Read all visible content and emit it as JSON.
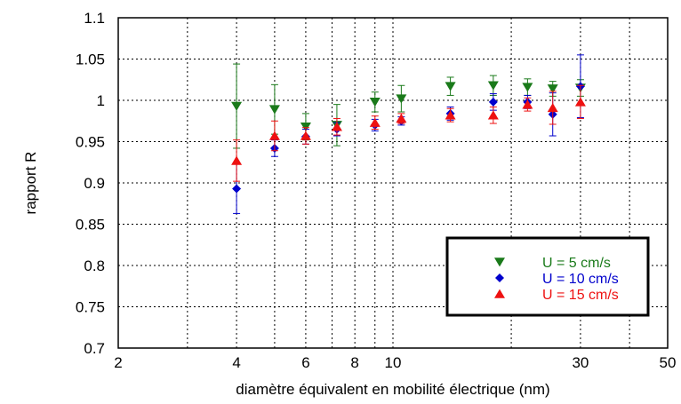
{
  "chart_data": {
    "type": "scatter",
    "xlabel": "diamètre équivalent en mobilité électrique (nm)",
    "ylabel": "rapport R",
    "x_scale": "log",
    "xlim": [
      2,
      50
    ],
    "ylim": [
      0.7,
      1.1
    ],
    "x_ticks": [
      2,
      4,
      6,
      8,
      10,
      30,
      50
    ],
    "x_tick_labels": [
      "2",
      "4",
      "6",
      "8",
      "10",
      "30",
      "50"
    ],
    "x_grid": [
      2,
      3,
      4,
      5,
      6,
      7,
      8,
      9,
      10,
      20,
      30,
      40,
      50
    ],
    "y_ticks": [
      0.7,
      0.75,
      0.8,
      0.85,
      0.9,
      0.95,
      1,
      1.05,
      1.1
    ],
    "y_tick_labels": [
      "0.7",
      "0.75",
      "0.8",
      "0.85",
      "0.9",
      "0.95",
      "1",
      "1.05",
      "1.1"
    ],
    "grid": true,
    "legend_position": "bottom-right",
    "series": [
      {
        "name": "U = 5 cm/s",
        "color": "#1a7a1a",
        "marker": "triangle-down",
        "x": [
          4,
          5,
          6,
          7.2,
          9,
          10.5,
          14,
          18,
          22,
          25.5,
          30
        ],
        "y": [
          0.993,
          0.989,
          0.968,
          0.97,
          0.998,
          1.002,
          1.017,
          1.018,
          1.016,
          1.014,
          1.015
        ],
        "err": [
          0.051,
          0.03,
          0.016,
          0.025,
          0.012,
          0.016,
          0.011,
          0.012,
          0.01,
          0.009,
          0.01
        ]
      },
      {
        "name": "U = 10 cm/s",
        "color": "#0000cc",
        "marker": "diamond",
        "x": [
          4,
          5,
          6,
          7.2,
          9,
          10.5,
          14,
          18,
          22,
          25.5,
          30
        ],
        "y": [
          0.893,
          0.942,
          0.956,
          0.965,
          0.97,
          0.975,
          0.984,
          0.998,
          0.998,
          0.983,
          1.017
        ],
        "err": [
          0.03,
          0.01,
          0.009,
          0.008,
          0.007,
          0.005,
          0.008,
          0.01,
          0.008,
          0.026,
          0.038
        ]
      },
      {
        "name": "U = 15 cm/s",
        "color": "#ee1111",
        "marker": "triangle-up",
        "x": [
          4,
          5,
          6,
          7.2,
          9,
          10.5,
          14,
          18,
          22,
          25.5,
          30
        ],
        "y": [
          0.927,
          0.957,
          0.957,
          0.968,
          0.973,
          0.978,
          0.982,
          0.982,
          0.995,
          0.991,
          0.998
        ],
        "err": [
          0.025,
          0.018,
          0.01,
          0.01,
          0.008,
          0.006,
          0.008,
          0.01,
          0.008,
          0.02,
          0.02
        ]
      }
    ]
  }
}
